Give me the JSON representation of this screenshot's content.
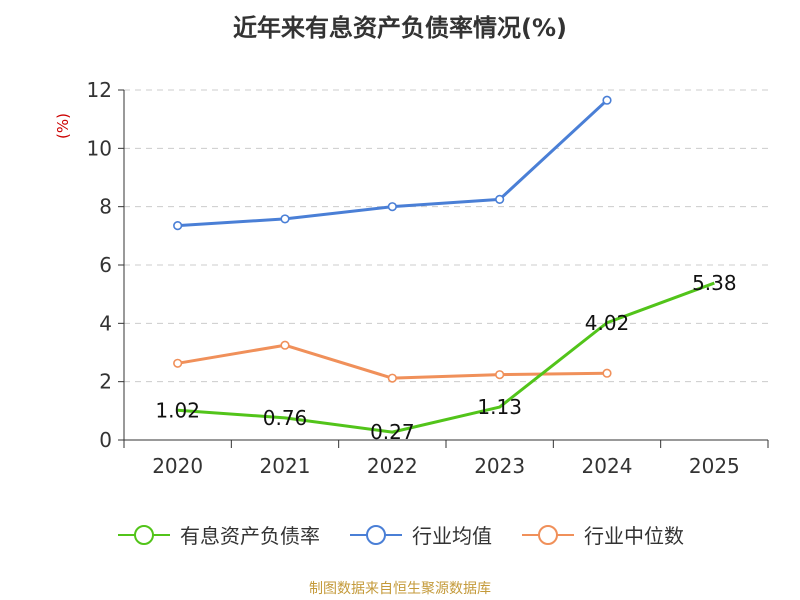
{
  "page": {
    "title": "近年来有息资产负债率情况(%)",
    "source": "制图数据来自恒生聚源数据库"
  },
  "chart_data": {
    "type": "line",
    "title": "近年来有息资产负债率情况(%)",
    "ylabel": "(%)",
    "xlabel": "",
    "categories": [
      "2020",
      "2021",
      "2022",
      "2023",
      "2024",
      "2025"
    ],
    "ylim": [
      0,
      12
    ],
    "yticks": [
      0,
      2,
      4,
      6,
      8,
      10,
      12
    ],
    "grid": true,
    "legend_position": "bottom",
    "series": [
      {
        "name": "有息资产负债率",
        "color": "#52c41a",
        "values": [
          1.02,
          0.76,
          0.27,
          1.13,
          4.02,
          5.38
        ],
        "data_labels": [
          "1.02",
          "0.76",
          "0.27",
          "1.13",
          "4.02",
          "5.38"
        ]
      },
      {
        "name": "行业均值",
        "color": "#4a7fd6",
        "values": [
          7.35,
          7.58,
          8.0,
          8.25,
          11.65,
          null
        ]
      },
      {
        "name": "行业中位数",
        "color": "#f0905a",
        "values": [
          2.63,
          3.25,
          2.12,
          2.24,
          2.29,
          null
        ]
      }
    ]
  },
  "colors": {
    "axis": "#333333",
    "grid": "#cccccc",
    "ylabel": "#cc0000"
  }
}
